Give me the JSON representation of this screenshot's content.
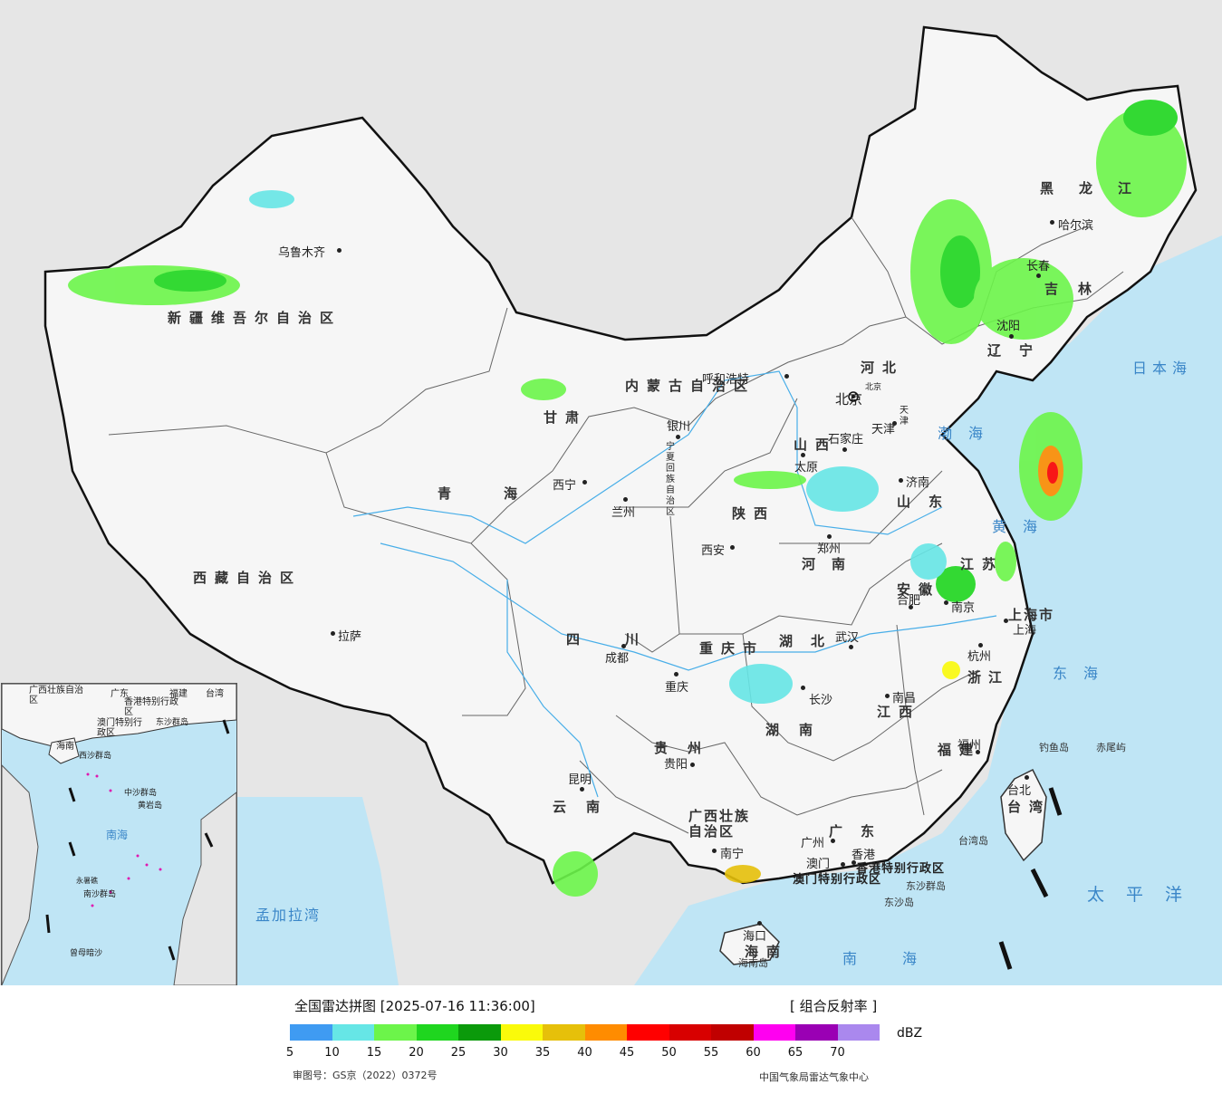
{
  "legend": {
    "title": "全国雷达拼图 [2025-07-16 11:36:00]",
    "product": "[ 组合反射率 ]",
    "unit": "dBZ",
    "ticks": [
      "5",
      "10",
      "15",
      "20",
      "25",
      "30",
      "35",
      "40",
      "45",
      "50",
      "55",
      "60",
      "65",
      "70"
    ],
    "colors": [
      "#3f9bf2",
      "#66e6e6",
      "#6cf54a",
      "#1fd61f",
      "#0b9a0b",
      "#fafa0a",
      "#e6c00a",
      "#ff8c00",
      "#ff0000",
      "#d80000",
      "#c00000",
      "#ff00f0",
      "#9a00b4",
      "#aa88ee"
    ],
    "review_number": "审图号：GS京（2022）0372号",
    "agency": "中国气象局雷达气象中心"
  },
  "map": {
    "provinces": [
      "新疆维吾尔自治区",
      "西藏自治区",
      "青海",
      "甘肃",
      "内蒙古自治区",
      "黑龙江",
      "吉林",
      "辽宁",
      "河北",
      "山西",
      "山东",
      "陕西",
      "河南",
      "江苏",
      "安徽",
      "湖北",
      "四川",
      "重庆市",
      "贵州",
      "湖南",
      "江西",
      "浙江",
      "福建",
      "云南",
      "广西壮族自治区",
      "广东",
      "海南",
      "台湾",
      "上海市",
      "宁夏回族自治区",
      "天津",
      "北京"
    ],
    "cities": [
      "乌鲁木齐",
      "拉萨",
      "西宁",
      "兰州",
      "银川",
      "呼和浩特",
      "北京",
      "天津",
      "石家庄",
      "太原",
      "济南",
      "郑州",
      "西安",
      "合肥",
      "南京",
      "上海",
      "杭州",
      "武汉",
      "成都",
      "重庆",
      "长沙",
      "南昌",
      "贵阳",
      "昆明",
      "南宁",
      "广州",
      "澳门",
      "香港",
      "福州",
      "台北",
      "海口",
      "沈阳",
      "长春",
      "哈尔滨"
    ],
    "seas": [
      "日本海",
      "渤海",
      "黄海",
      "东海",
      "太平洋",
      "南海",
      "孟加拉湾"
    ],
    "islands": [
      "钓鱼岛",
      "赤尾屿",
      "台湾岛",
      "东沙群岛",
      "海南岛",
      "东沙岛"
    ],
    "special": [
      "香港特别行政区",
      "澳门特别行政区"
    ],
    "inset": [
      "广西壮族自治区",
      "广东",
      "福建",
      "台湾",
      "香港特别行政区",
      "澳门特别行政区",
      "东沙群岛",
      "海南",
      "西沙群岛",
      "中沙群岛",
      "黄岩岛",
      "南海",
      "南沙群岛",
      "曾母暗沙",
      "永暑礁"
    ]
  }
}
